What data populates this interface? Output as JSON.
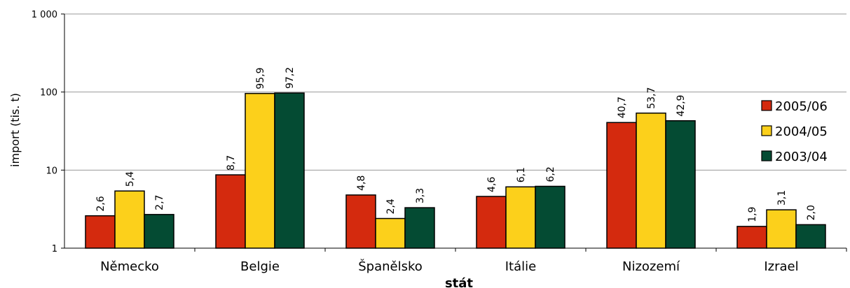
{
  "chart_data": {
    "type": "bar",
    "scale": "log",
    "title": "",
    "xlabel": "stát",
    "ylabel": "import (tis. t)",
    "ylim": [
      1,
      1000
    ],
    "yticks": [
      1,
      10,
      100,
      1000
    ],
    "ytick_labels": [
      "1",
      "10",
      "100",
      "1 000"
    ],
    "grid": true,
    "legend_position": "right",
    "categories": [
      "Německo",
      "Belgie",
      "Španělsko",
      "Itálie",
      "Nizozemí",
      "Izrael"
    ],
    "series": [
      {
        "name": "2005/06",
        "color": "#d42a0e",
        "values": [
          2.6,
          8.7,
          4.8,
          4.6,
          40.7,
          1.9
        ],
        "labels": [
          "2,6",
          "8,7",
          "4,8",
          "4,6",
          "40,7",
          "1,9"
        ]
      },
      {
        "name": "2004/05",
        "color": "#fcd01b",
        "values": [
          5.4,
          95.9,
          2.4,
          6.1,
          53.7,
          3.1
        ],
        "labels": [
          "5,4",
          "95,9",
          "2,4",
          "6,1",
          "53,7",
          "3,1"
        ]
      },
      {
        "name": "2003/04",
        "color": "#044b33",
        "values": [
          2.7,
          97.2,
          3.3,
          6.2,
          42.9,
          2.0
        ],
        "labels": [
          "2,7",
          "97,2",
          "3,3",
          "6,2",
          "42,9",
          "2,0"
        ]
      }
    ]
  }
}
